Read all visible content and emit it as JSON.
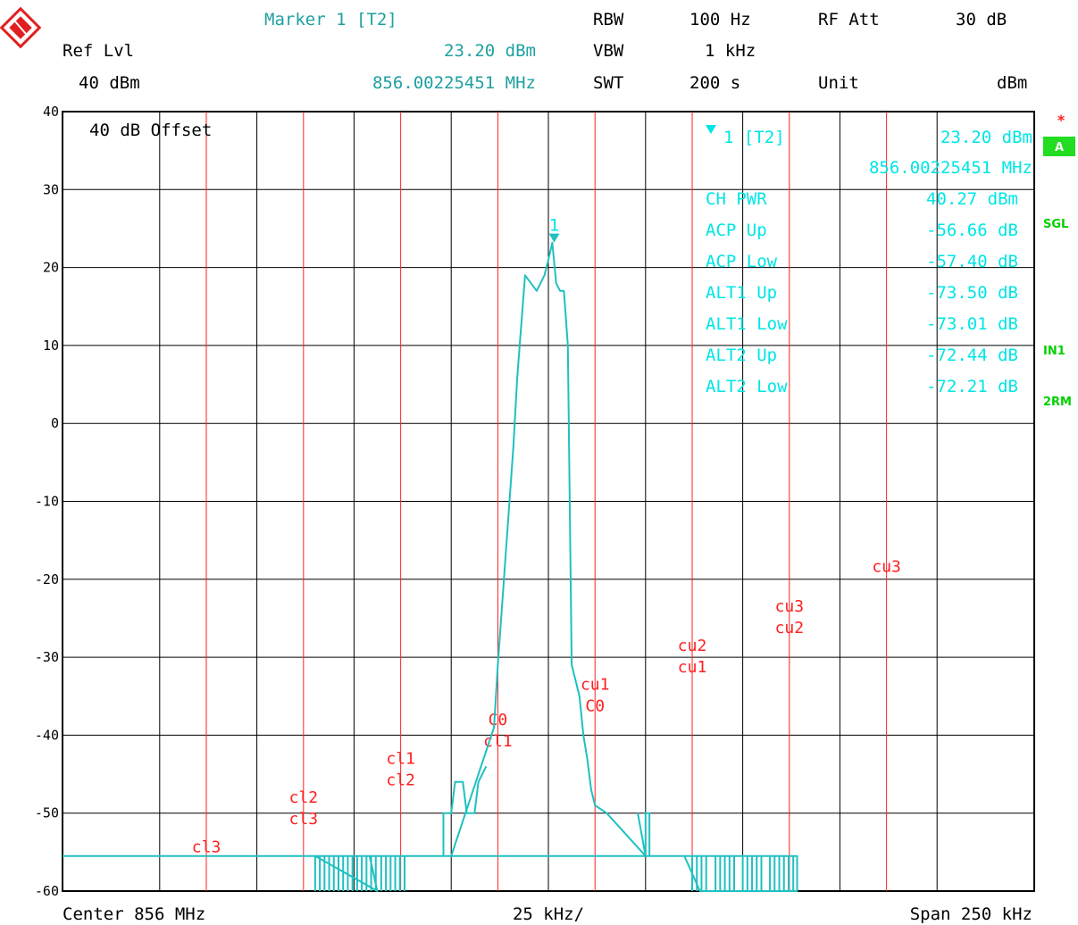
{
  "header": {
    "marker_title": "Marker 1 [T2]",
    "ref_lvl_label": "Ref Lvl",
    "ref_lvl_value": "40 dBm",
    "marker_level": "23.20 dBm",
    "marker_freq": "856.00225451 MHz",
    "rbw_label": "RBW",
    "rbw_value": "100 Hz",
    "vbw_label": "VBW",
    "vbw_value": "1 kHz",
    "swt_label": "SWT",
    "swt_value": "200 s",
    "rfatt_label": "RF Att",
    "rfatt_value": "30 dB",
    "unit_label": "Unit",
    "unit_value": "dBm"
  },
  "offset_label": "40 dB Offset",
  "marker_info": {
    "marker_line_label": "1 [T2]",
    "marker_line_value": "23.20 dBm",
    "marker_freq": "856.00225451 MHz",
    "rows": [
      {
        "label": "CH PWR",
        "value": "40.27 dBm"
      },
      {
        "label": "ACP Up",
        "value": "-56.66 dB"
      },
      {
        "label": "ACP Low",
        "value": "-57.40 dB"
      },
      {
        "label": "ALT1 Up",
        "value": "-73.50 dB"
      },
      {
        "label": "ALT1 Low",
        "value": "-73.01 dB"
      },
      {
        "label": "ALT2 Up",
        "value": "-72.44 dB"
      },
      {
        "label": "ALT2 Low",
        "value": "-72.21 dB"
      }
    ]
  },
  "side_labels": {
    "star": "*",
    "trace": "A",
    "sgl": "SGL",
    "in1": "IN1",
    "rm": "2RM"
  },
  "footer": {
    "center": "Center 856 MHz",
    "div": "25 kHz/",
    "span": "Span 250 kHz"
  },
  "colors": {
    "trace": "#20c0c0",
    "limit": "#ff2020",
    "grid": "#000000",
    "marker": "#20c0c0"
  },
  "chart_data": {
    "type": "line",
    "xlim": [
      -125,
      125
    ],
    "ylim": [
      -60,
      40
    ],
    "y_ticks": [
      40,
      30,
      20,
      10,
      0,
      -10,
      -20,
      -30,
      -40,
      -50,
      -60
    ],
    "grid": true,
    "x_unit": "kHz offset from center",
    "series": [
      {
        "name": "T2",
        "x": [
          -125,
          -60,
          -60,
          -44,
          -44,
          -46,
          -46,
          -25,
          -25,
          -14,
          -13,
          -9,
          -8,
          -6,
          -3,
          -2,
          -1,
          0,
          1,
          2,
          3,
          4,
          5,
          6,
          7,
          8,
          9,
          10,
          11,
          12,
          15,
          25,
          35,
          39,
          46,
          64,
          64,
          -125
        ],
        "y": [
          -55.5,
          -55.5,
          -55.5,
          -60,
          -60,
          -55.5,
          -55.5,
          -55.5,
          -55.5,
          -39,
          -31,
          -3,
          6,
          19,
          17,
          18,
          19,
          21,
          23.2,
          18,
          17,
          17,
          10,
          -31,
          -33,
          -35,
          -40,
          -43,
          -47,
          -49,
          -50,
          -55.5,
          -55.5,
          -60,
          -60,
          -60,
          -55.5,
          -55.5
        ]
      }
    ],
    "annotations": {
      "marker": {
        "label": "1",
        "x": 1.5,
        "y": 23.2
      },
      "limit_lines": [
        {
          "x": -88,
          "labels": [
            "cl3"
          ]
        },
        {
          "x": -63,
          "labels": [
            "cl2",
            "cl3"
          ]
        },
        {
          "x": -38,
          "labels": [
            "cl1",
            "cl2"
          ]
        },
        {
          "x": -13,
          "labels": [
            "C0",
            "cl1"
          ]
        },
        {
          "x": 12,
          "labels": [
            "cu1",
            "C0"
          ]
        },
        {
          "x": 37,
          "labels": [
            "cu2",
            "cu1"
          ]
        },
        {
          "x": 62,
          "labels": [
            "cu3",
            "cu2"
          ]
        },
        {
          "x": 87,
          "labels": [
            "cu3"
          ]
        }
      ]
    }
  }
}
